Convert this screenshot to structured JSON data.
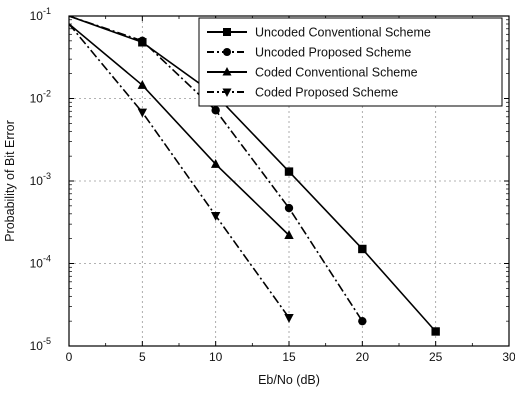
{
  "chart_data": {
    "type": "line",
    "title": "",
    "xlabel": "Eb/No (dB)",
    "ylabel": "Probability of Bit Error",
    "xlim": [
      0,
      30
    ],
    "ylim": [
      1e-05,
      0.1
    ],
    "yscale": "log",
    "grid": true,
    "legend_position": "top-right",
    "x_ticks": [
      "0",
      "5",
      "10",
      "15",
      "20",
      "25",
      "30"
    ],
    "y_ticks": [
      {
        "base": "10",
        "exp": "-1",
        "value": 0.1
      },
      {
        "base": "10",
        "exp": "-2",
        "value": 0.01
      },
      {
        "base": "10",
        "exp": "-3",
        "value": 0.001
      },
      {
        "base": "10",
        "exp": "-4",
        "value": 0.0001
      },
      {
        "base": "10",
        "exp": "-5",
        "value": 1e-05
      }
    ],
    "series": [
      {
        "name": "Uncoded Conventional Scheme",
        "marker": "square",
        "dash": "solid",
        "color": "#000000",
        "x": [
          0,
          5,
          10,
          15,
          20,
          25
        ],
        "y": [
          0.1,
          0.048,
          0.011,
          0.0013,
          0.00015,
          1.5e-05
        ]
      },
      {
        "name": "Uncoded Proposed Scheme",
        "marker": "circle",
        "dash": "dashdot",
        "color": "#000000",
        "x": [
          0,
          5,
          10,
          15,
          20
        ],
        "y": [
          0.1,
          0.05,
          0.0072,
          0.00047,
          2e-05
        ]
      },
      {
        "name": "Coded Conventional Scheme",
        "marker": "triangle-up",
        "dash": "solid",
        "color": "#000000",
        "x": [
          0,
          5,
          10,
          15
        ],
        "y": [
          0.08,
          0.0145,
          0.0016,
          0.00022
        ]
      },
      {
        "name": "Coded Proposed Scheme",
        "marker": "triangle-down",
        "dash": "dashdot",
        "color": "#000000",
        "x": [
          0,
          5,
          10,
          15
        ],
        "y": [
          0.08,
          0.0068,
          0.00038,
          2.2e-05
        ]
      }
    ]
  }
}
